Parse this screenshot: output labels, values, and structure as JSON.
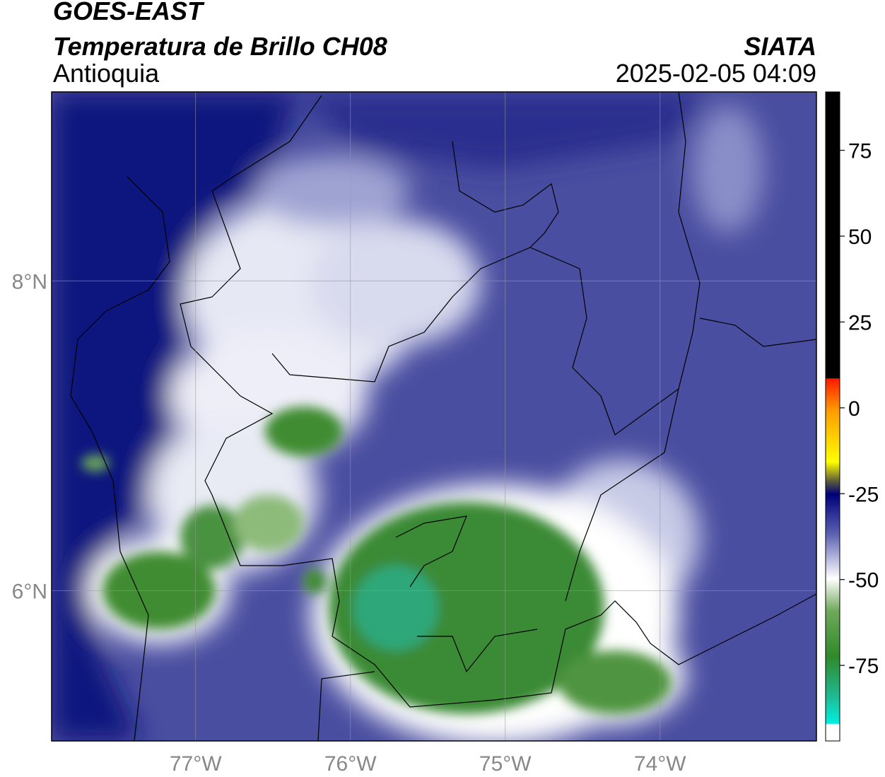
{
  "header": {
    "source": "GOES-EAST",
    "product": "Temperatura de Brillo CH08",
    "region": "Antioquia",
    "agency": "SIATA",
    "datetime": "2025-02-05 04:09"
  },
  "map": {
    "xlim": [
      -77.93,
      -72.99
    ],
    "ylim": [
      5.03,
      9.22
    ],
    "xticks": [
      {
        "value": -77,
        "label": "77°W"
      },
      {
        "value": -76,
        "label": "76°W"
      },
      {
        "value": -75,
        "label": "75°W"
      },
      {
        "value": -74,
        "label": "74°W"
      }
    ],
    "yticks": [
      {
        "value": 8,
        "label": "8°N"
      },
      {
        "value": 6,
        "label": "6°N"
      }
    ],
    "grid": true
  },
  "colorbar": {
    "lim": [
      -97,
      92
    ],
    "ticks": [
      75,
      50,
      25,
      0,
      -25,
      -50,
      -75
    ]
  }
}
